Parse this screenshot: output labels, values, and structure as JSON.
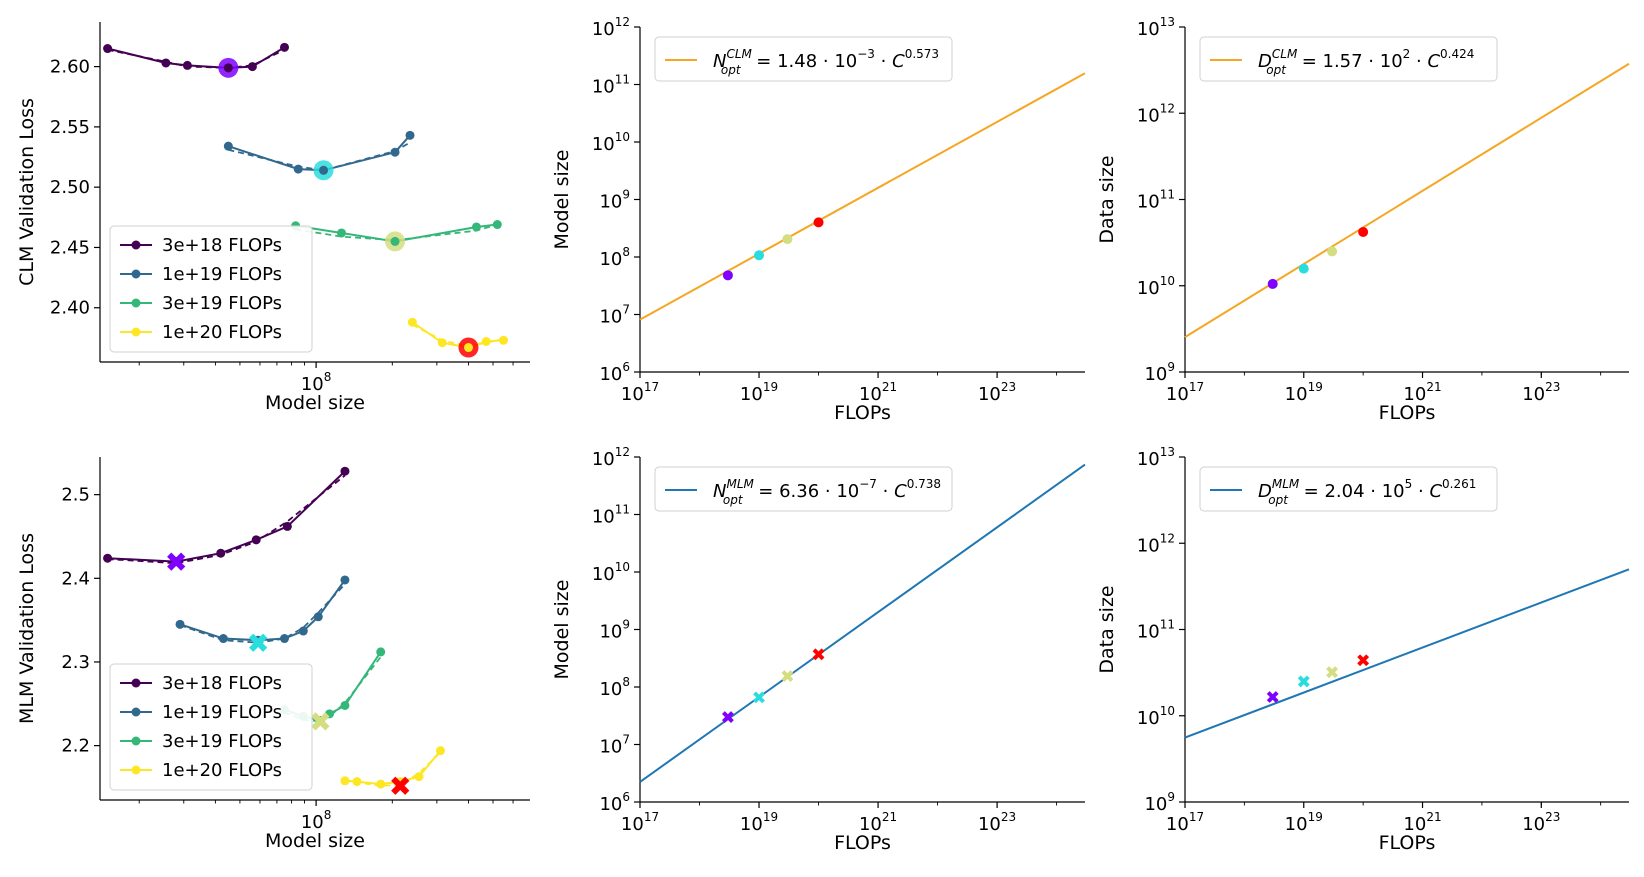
{
  "panel_order": [
    "clm_loss",
    "clm_model_size",
    "clm_data_size",
    "mlm_loss",
    "mlm_model_size",
    "mlm_data_size"
  ],
  "colors": {
    "budget_3e18": "#440154",
    "budget_1e19": "#31688e",
    "budget_3e19": "#35b779",
    "budget_1e20": "#fde725",
    "opt_3e18": "#7f00ff",
    "opt_1e19": "#2adddd",
    "opt_3e19": "#d4dd80",
    "opt_1e20": "#ff0000",
    "clm_fit": "#f5a623",
    "mlm_fit": "#1f77b4"
  },
  "chart_data": [
    {
      "id": "clm_loss",
      "type": "line",
      "xlabel": "Model size",
      "ylabel": "CLM Validation Loss",
      "xscale": "log",
      "xlim": [
        14000000.0,
        700000000.0
      ],
      "ylim": [
        2.355,
        2.637
      ],
      "x_ticks": [
        {
          "value": 100000000.0,
          "base": "10",
          "exp": "8"
        }
      ],
      "y_ticks": [
        {
          "value": 2.4,
          "label": "2.40"
        },
        {
          "value": 2.45,
          "label": "2.45"
        },
        {
          "value": 2.5,
          "label": "2.50"
        },
        {
          "value": 2.55,
          "label": "2.55"
        },
        {
          "value": 2.6,
          "label": "2.60"
        }
      ],
      "legend": {
        "position": "lower-left",
        "entries": [
          "3e+18 FLOPs",
          "1e+19 FLOPs",
          "3e+19 FLOPs",
          "1e+20 FLOPs"
        ]
      },
      "series": [
        {
          "name": "3e+18 FLOPs",
          "color_key": "budget_3e18",
          "x": [
            15000000.0,
            25500000.0,
            31000000.0,
            45000000.0,
            56000000.0,
            75000000.0
          ],
          "y": [
            2.615,
            2.603,
            2.601,
            2.599,
            2.6,
            2.616
          ],
          "fit_y": [
            2.614,
            2.604,
            2.6,
            2.599,
            2.601,
            2.614
          ]
        },
        {
          "name": "1e+19 FLOPs",
          "color_key": "budget_1e19",
          "x": [
            45000000.0,
            85000000.0,
            107000000.0,
            205000000.0,
            235000000.0
          ],
          "y": [
            2.534,
            2.515,
            2.514,
            2.529,
            2.543
          ],
          "fit_y": [
            2.531,
            2.517,
            2.514,
            2.53,
            2.537
          ]
        },
        {
          "name": "3e+19 FLOPs",
          "color_key": "budget_3e19",
          "x": [
            83000000.0,
            126000000.0,
            205000000.0,
            430000000.0,
            520000000.0
          ],
          "y": [
            2.468,
            2.462,
            2.455,
            2.467,
            2.469
          ],
          "fit_y": [
            2.465,
            2.459,
            2.456,
            2.464,
            2.469
          ]
        },
        {
          "name": "1e+20 FLOPs",
          "color_key": "budget_1e20",
          "x": [
            240000000.0,
            315000000.0,
            400000000.0,
            470000000.0,
            550000000.0
          ],
          "y": [
            2.388,
            2.371,
            2.367,
            2.372,
            2.373
          ],
          "fit_y": [
            2.386,
            2.373,
            2.368,
            2.371,
            2.374
          ]
        }
      ],
      "optima": [
        {
          "budget": "3e+18 FLOPs",
          "x": 45000000.0,
          "y": 2.599,
          "marker": "circle",
          "color_key": "opt_3e18"
        },
        {
          "budget": "1e+19 FLOPs",
          "x": 107000000.0,
          "y": 2.514,
          "marker": "circle",
          "color_key": "opt_1e19"
        },
        {
          "budget": "3e+19 FLOPs",
          "x": 205000000.0,
          "y": 2.455,
          "marker": "circle",
          "color_key": "opt_3e19"
        },
        {
          "budget": "1e+20 FLOPs",
          "x": 400000000.0,
          "y": 2.367,
          "marker": "circle",
          "color_key": "opt_1e20"
        }
      ]
    },
    {
      "id": "clm_model_size",
      "type": "line",
      "xlabel": "FLOPs",
      "ylabel": "Model size",
      "xscale": "log",
      "yscale": "log",
      "xlim": [
        1e+17,
        3e+24
      ],
      "ylim": [
        1000000.0,
        1000000000000.0
      ],
      "x_ticks": [
        {
          "value": 1e+17,
          "base": "10",
          "exp": "17"
        },
        {
          "value": 1e+19,
          "base": "10",
          "exp": "19"
        },
        {
          "value": 1e+21,
          "base": "10",
          "exp": "21"
        },
        {
          "value": 1e+23,
          "base": "10",
          "exp": "23"
        }
      ],
      "y_ticks": [
        {
          "value": 1000000.0,
          "base": "10",
          "exp": "6"
        },
        {
          "value": 10000000.0,
          "base": "10",
          "exp": "7"
        },
        {
          "value": 100000000.0,
          "base": "10",
          "exp": "8"
        },
        {
          "value": 1000000000.0,
          "base": "10",
          "exp": "9"
        },
        {
          "value": 10000000000.0,
          "base": "10",
          "exp": "10"
        },
        {
          "value": 100000000000.0,
          "base": "10",
          "exp": "11"
        },
        {
          "value": 1000000000000.0,
          "base": "10",
          "exp": "12"
        }
      ],
      "fit": {
        "coef": 0.00148,
        "exponent": 0.573,
        "color_key": "clm_fit"
      },
      "legend": {
        "position": "top-left",
        "var": "N",
        "sup": "CLM",
        "sub": "opt",
        "coef_text": "1.48",
        "pow": "−3",
        "exp_text": "0.573"
      },
      "points": [
        {
          "x": 3e+18,
          "y": 48000000.0,
          "marker": "circle",
          "color_key": "opt_3e18"
        },
        {
          "x": 1e+19,
          "y": 107000000.0,
          "marker": "circle",
          "color_key": "opt_1e19"
        },
        {
          "x": 3e+19,
          "y": 205000000.0,
          "marker": "circle",
          "color_key": "opt_3e19"
        },
        {
          "x": 1e+20,
          "y": 400000000.0,
          "marker": "circle",
          "color_key": "opt_1e20"
        }
      ]
    },
    {
      "id": "clm_data_size",
      "type": "line",
      "xlabel": "FLOPs",
      "ylabel": "Data size",
      "xscale": "log",
      "yscale": "log",
      "xlim": [
        1e+17,
        3e+24
      ],
      "ylim": [
        1000000000.0,
        10000000000000.0
      ],
      "x_ticks": [
        {
          "value": 1e+17,
          "base": "10",
          "exp": "17"
        },
        {
          "value": 1e+19,
          "base": "10",
          "exp": "19"
        },
        {
          "value": 1e+21,
          "base": "10",
          "exp": "21"
        },
        {
          "value": 1e+23,
          "base": "10",
          "exp": "23"
        }
      ],
      "y_ticks": [
        {
          "value": 1000000000.0,
          "base": "10",
          "exp": "9"
        },
        {
          "value": 10000000000.0,
          "base": "10",
          "exp": "10"
        },
        {
          "value": 100000000000.0,
          "base": "10",
          "exp": "11"
        },
        {
          "value": 1000000000000.0,
          "base": "10",
          "exp": "12"
        },
        {
          "value": 10000000000000.0,
          "base": "10",
          "exp": "13"
        }
      ],
      "fit": {
        "coef": 157,
        "exponent": 0.424,
        "color_key": "clm_fit"
      },
      "legend": {
        "position": "top-left",
        "var": "D",
        "sup": "CLM",
        "sub": "opt",
        "coef_text": "1.57",
        "pow": "2",
        "exp_text": "0.424"
      },
      "points": [
        {
          "x": 3e+18,
          "y": 10500000000.0,
          "marker": "circle",
          "color_key": "opt_3e18"
        },
        {
          "x": 1e+19,
          "y": 15800000000.0,
          "marker": "circle",
          "color_key": "opt_1e19"
        },
        {
          "x": 3e+19,
          "y": 25000000000.0,
          "marker": "circle",
          "color_key": "opt_3e19"
        },
        {
          "x": 1e+20,
          "y": 42000000000.0,
          "marker": "circle",
          "color_key": "opt_1e20"
        }
      ]
    },
    {
      "id": "mlm_loss",
      "type": "line",
      "xlabel": "Model size",
      "ylabel": "MLM Validation Loss",
      "xscale": "log",
      "xlim": [
        14000000.0,
        700000000.0
      ],
      "ylim": [
        2.135,
        2.545
      ],
      "x_ticks": [
        {
          "value": 100000000.0,
          "base": "10",
          "exp": "8"
        }
      ],
      "y_ticks": [
        {
          "value": 2.2,
          "label": "2.2"
        },
        {
          "value": 2.3,
          "label": "2.3"
        },
        {
          "value": 2.4,
          "label": "2.4"
        },
        {
          "value": 2.5,
          "label": "2.5"
        }
      ],
      "legend": {
        "position": "lower-left",
        "entries": [
          "3e+18 FLOPs",
          "1e+19 FLOPs",
          "3e+19 FLOPs",
          "1e+20 FLOPs"
        ]
      },
      "series": [
        {
          "name": "3e+18 FLOPs",
          "color_key": "budget_3e18",
          "x": [
            15000000.0,
            28000000.0,
            42000000.0,
            58000000.0,
            77000000.0,
            130000000.0
          ],
          "y": [
            2.424,
            2.42,
            2.43,
            2.446,
            2.462,
            2.528
          ],
          "fit_y": [
            2.423,
            2.418,
            2.428,
            2.444,
            2.468,
            2.523
          ]
        },
        {
          "name": "1e+19 FLOPs",
          "color_key": "budget_1e19",
          "x": [
            29000000.0,
            43000000.0,
            59000000.0,
            75000000.0,
            89000000.0,
            102000000.0,
            130000000.0
          ],
          "y": [
            2.345,
            2.328,
            2.326,
            2.328,
            2.337,
            2.354,
            2.398
          ],
          "fit_y": [
            2.344,
            2.326,
            2.323,
            2.328,
            2.341,
            2.359,
            2.393
          ]
        },
        {
          "name": "3e+19 FLOPs",
          "color_key": "budget_3e19",
          "x": [
            75000000.0,
            89000000.0,
            104000000.0,
            113000000.0,
            130000000.0,
            180000000.0
          ],
          "y": [
            2.243,
            2.235,
            2.23,
            2.238,
            2.248,
            2.312
          ],
          "fit_y": [
            2.24,
            2.231,
            2.229,
            2.235,
            2.251,
            2.306
          ]
        },
        {
          "name": "1e+20 FLOPs",
          "color_key": "budget_1e20",
          "x": [
            130000000.0,
            145000000.0,
            180000000.0,
            215000000.0,
            255000000.0,
            310000000.0
          ],
          "y": [
            2.158,
            2.157,
            2.154,
            2.157,
            2.163,
            2.194
          ],
          "fit_y": [
            2.159,
            2.156,
            2.152,
            2.153,
            2.167,
            2.192
          ]
        }
      ],
      "optima": [
        {
          "budget": "3e+18 FLOPs",
          "x": 28000000.0,
          "y": 2.42,
          "marker": "x",
          "color_key": "opt_3e18"
        },
        {
          "budget": "1e+19 FLOPs",
          "x": 59000000.0,
          "y": 2.323,
          "marker": "x",
          "color_key": "opt_1e19"
        },
        {
          "budget": "3e+19 FLOPs",
          "x": 104000000.0,
          "y": 2.229,
          "marker": "x",
          "color_key": "opt_3e19"
        },
        {
          "budget": "1e+20 FLOPs",
          "x": 215000000.0,
          "y": 2.152,
          "marker": "x",
          "color_key": "opt_1e20"
        }
      ]
    },
    {
      "id": "mlm_model_size",
      "type": "line",
      "xlabel": "FLOPs",
      "ylabel": "Model size",
      "xscale": "log",
      "yscale": "log",
      "xlim": [
        1e+17,
        3e+24
      ],
      "ylim": [
        1000000.0,
        1000000000000.0
      ],
      "x_ticks": [
        {
          "value": 1e+17,
          "base": "10",
          "exp": "17"
        },
        {
          "value": 1e+19,
          "base": "10",
          "exp": "19"
        },
        {
          "value": 1e+21,
          "base": "10",
          "exp": "21"
        },
        {
          "value": 1e+23,
          "base": "10",
          "exp": "23"
        }
      ],
      "y_ticks": [
        {
          "value": 1000000.0,
          "base": "10",
          "exp": "6"
        },
        {
          "value": 10000000.0,
          "base": "10",
          "exp": "7"
        },
        {
          "value": 100000000.0,
          "base": "10",
          "exp": "8"
        },
        {
          "value": 1000000000.0,
          "base": "10",
          "exp": "9"
        },
        {
          "value": 10000000000.0,
          "base": "10",
          "exp": "10"
        },
        {
          "value": 100000000000.0,
          "base": "10",
          "exp": "11"
        },
        {
          "value": 1000000000000.0,
          "base": "10",
          "exp": "12"
        }
      ],
      "fit": {
        "coef": 6.36e-07,
        "exponent": 0.738,
        "color_key": "mlm_fit"
      },
      "legend": {
        "position": "top-left",
        "var": "N",
        "sup": "MLM",
        "sub": "opt",
        "coef_text": "6.36",
        "pow": "−7",
        "exp_text": "0.738"
      },
      "points": [
        {
          "x": 3e+18,
          "y": 30000000.0,
          "marker": "x",
          "color_key": "opt_3e18"
        },
        {
          "x": 1e+19,
          "y": 66000000.0,
          "marker": "x",
          "color_key": "opt_1e19"
        },
        {
          "x": 3e+19,
          "y": 155000000.0,
          "marker": "x",
          "color_key": "opt_3e19"
        },
        {
          "x": 1e+20,
          "y": 370000000.0,
          "marker": "x",
          "color_key": "opt_1e20"
        }
      ]
    },
    {
      "id": "mlm_data_size",
      "type": "line",
      "xlabel": "FLOPs",
      "ylabel": "Data size",
      "xscale": "log",
      "yscale": "log",
      "xlim": [
        1e+17,
        3e+24
      ],
      "ylim": [
        1000000000.0,
        10000000000000.0
      ],
      "x_ticks": [
        {
          "value": 1e+17,
          "base": "10",
          "exp": "17"
        },
        {
          "value": 1e+19,
          "base": "10",
          "exp": "19"
        },
        {
          "value": 1e+21,
          "base": "10",
          "exp": "21"
        },
        {
          "value": 1e+23,
          "base": "10",
          "exp": "23"
        }
      ],
      "y_ticks": [
        {
          "value": 1000000000.0,
          "base": "10",
          "exp": "9"
        },
        {
          "value": 10000000000.0,
          "base": "10",
          "exp": "10"
        },
        {
          "value": 100000000000.0,
          "base": "10",
          "exp": "11"
        },
        {
          "value": 1000000000000.0,
          "base": "10",
          "exp": "12"
        },
        {
          "value": 10000000000000.0,
          "base": "10",
          "exp": "13"
        }
      ],
      "fit": {
        "coef": 204000.0,
        "exponent": 0.261,
        "color_key": "mlm_fit"
      },
      "legend": {
        "position": "top-left",
        "var": "D",
        "sup": "MLM",
        "sub": "opt",
        "coef_text": "2.04",
        "pow": "5",
        "exp_text": "0.261"
      },
      "points": [
        {
          "x": 3e+18,
          "y": 16500000000.0,
          "marker": "x",
          "color_key": "opt_3e18"
        },
        {
          "x": 1e+19,
          "y": 25000000000.0,
          "marker": "x",
          "color_key": "opt_1e19"
        },
        {
          "x": 3e+19,
          "y": 32000000000.0,
          "marker": "x",
          "color_key": "opt_3e19"
        },
        {
          "x": 1e+20,
          "y": 44000000000.0,
          "marker": "x",
          "color_key": "opt_1e20"
        }
      ]
    }
  ]
}
